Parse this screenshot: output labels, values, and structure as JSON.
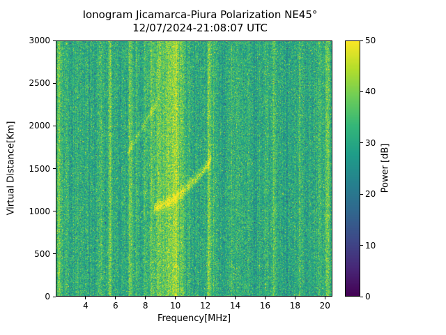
{
  "figure": {
    "background": "#ffffff"
  },
  "chart_data": {
    "type": "heatmap",
    "title": "Ionogram Jicamarca-Piura Polarization NE45°",
    "subtitle": "12/07/2024-21:08:07 UTC",
    "xlabel": "Frequency[MHz]",
    "ylabel": "Virtual Distance[Km]",
    "xlim": [
      2.0,
      20.5
    ],
    "ylim": [
      0,
      3000
    ],
    "xticks": [
      4,
      6,
      8,
      10,
      12,
      14,
      16,
      18,
      20
    ],
    "yticks": [
      0,
      500,
      1000,
      1500,
      2000,
      2500,
      3000
    ],
    "colormap": "viridis",
    "colorbar": {
      "label": "Power [dB]",
      "min": 0,
      "max": 50,
      "ticks": [
        0,
        10,
        20,
        30,
        40,
        50
      ]
    },
    "noise": {
      "mean_db": 31,
      "pixel_std_db": 4.5,
      "column_std_db": 1.6,
      "speckle_dark_prob": 0.05,
      "speckle_dark_db": 12,
      "speckle_bright_prob": 0.04,
      "speckle_bright_db": 9
    },
    "interference_stripes": [
      {
        "freq_mhz": 2.2,
        "width_mhz": 0.12,
        "boost_db": 7
      },
      {
        "freq_mhz": 2.7,
        "width_mhz": 0.1,
        "boost_db": 3
      },
      {
        "freq_mhz": 3.4,
        "width_mhz": 0.08,
        "boost_db": 2
      },
      {
        "freq_mhz": 4.5,
        "width_mhz": 0.15,
        "boost_db": -2.5
      },
      {
        "freq_mhz": 5.0,
        "width_mhz": 0.08,
        "boost_db": 3
      },
      {
        "freq_mhz": 5.65,
        "width_mhz": 0.07,
        "boost_db": 9
      },
      {
        "freq_mhz": 6.3,
        "width_mhz": 0.1,
        "boost_db": -2
      },
      {
        "freq_mhz": 7.0,
        "width_mhz": 0.09,
        "boost_db": 8
      },
      {
        "freq_mhz": 7.45,
        "width_mhz": 0.08,
        "boost_db": 3
      },
      {
        "freq_mhz": 8.0,
        "width_mhz": 0.1,
        "boost_db": 2
      },
      {
        "freq_mhz": 8.45,
        "width_mhz": 0.12,
        "boost_db": 5
      },
      {
        "freq_mhz": 8.85,
        "width_mhz": 0.1,
        "boost_db": 4
      },
      {
        "freq_mhz": 9.5,
        "width_mhz": 0.45,
        "boost_db": 9
      },
      {
        "freq_mhz": 10.05,
        "width_mhz": 0.18,
        "boost_db": 7
      },
      {
        "freq_mhz": 10.5,
        "width_mhz": 0.1,
        "boost_db": 5
      },
      {
        "freq_mhz": 10.9,
        "width_mhz": 0.08,
        "boost_db": 2
      },
      {
        "freq_mhz": 11.4,
        "width_mhz": 0.2,
        "boost_db": -2
      },
      {
        "freq_mhz": 12.25,
        "width_mhz": 0.09,
        "boost_db": 10
      },
      {
        "freq_mhz": 12.6,
        "width_mhz": 0.07,
        "boost_db": 3
      },
      {
        "freq_mhz": 13.1,
        "width_mhz": 0.15,
        "boost_db": -2
      },
      {
        "freq_mhz": 13.8,
        "width_mhz": 0.08,
        "boost_db": 2
      },
      {
        "freq_mhz": 14.15,
        "width_mhz": 0.1,
        "boost_db": 3
      },
      {
        "freq_mhz": 15.3,
        "width_mhz": 0.25,
        "boost_db": -2
      },
      {
        "freq_mhz": 16.0,
        "width_mhz": 0.08,
        "boost_db": 2
      },
      {
        "freq_mhz": 16.6,
        "width_mhz": 0.09,
        "boost_db": 5
      },
      {
        "freq_mhz": 17.4,
        "width_mhz": 0.2,
        "boost_db": -2.5
      },
      {
        "freq_mhz": 18.3,
        "width_mhz": 0.08,
        "boost_db": 2
      },
      {
        "freq_mhz": 19.0,
        "width_mhz": 0.15,
        "boost_db": -2
      },
      {
        "freq_mhz": 19.6,
        "width_mhz": 0.07,
        "boost_db": 3
      },
      {
        "freq_mhz": 20.15,
        "width_mhz": 0.12,
        "boost_db": 7
      }
    ],
    "echo_traces": [
      {
        "name": "f-region-echo",
        "points": [
          [
            8.55,
            1030
          ],
          [
            9.1,
            1070
          ],
          [
            9.7,
            1110
          ],
          [
            10.2,
            1180
          ],
          [
            10.7,
            1260
          ],
          [
            11.2,
            1350
          ],
          [
            11.7,
            1440
          ],
          [
            12.05,
            1510
          ],
          [
            12.3,
            1580
          ],
          [
            12.4,
            1650
          ]
        ],
        "halfwidth_km": 40,
        "boost_db": 16
      },
      {
        "name": "second-hop-echo",
        "points": [
          [
            6.85,
            1690
          ],
          [
            7.3,
            1830
          ],
          [
            7.8,
            1980
          ],
          [
            8.3,
            2130
          ],
          [
            8.75,
            2260
          ]
        ],
        "halfwidth_km": 30,
        "boost_db": 8
      }
    ]
  }
}
